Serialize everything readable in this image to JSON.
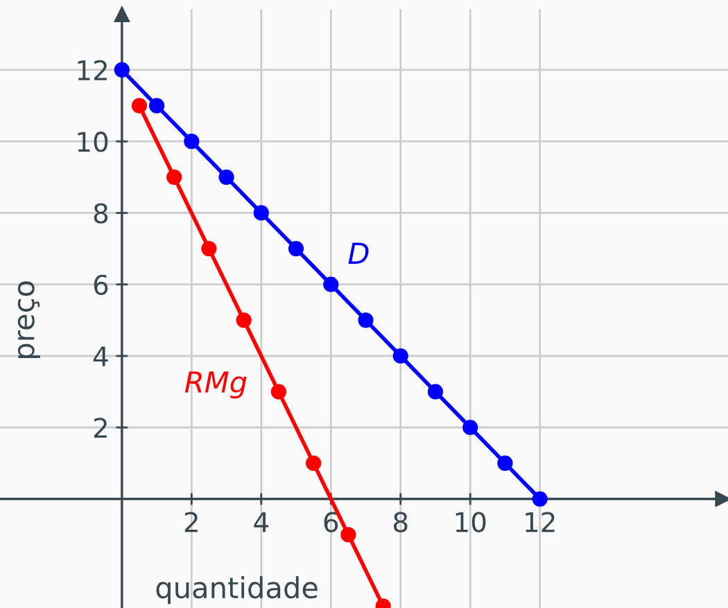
{
  "chart_data": {
    "type": "line",
    "xlabel": "quantidade",
    "ylabel": "preço",
    "xlim": [
      -3.5,
      17.4
    ],
    "ylim": [
      -3.05,
      13.7
    ],
    "xticks": [
      2,
      4,
      6,
      8,
      10,
      12
    ],
    "yticks": [
      2,
      4,
      6,
      8,
      10,
      12
    ],
    "grid": true,
    "marker": "circle",
    "line_style": "solid",
    "legend": false,
    "series": [
      {
        "name": "D",
        "color": "#0000ff",
        "x": [
          0,
          1,
          2,
          3,
          4,
          5,
          6,
          7,
          8,
          9,
          10,
          11,
          12
        ],
        "values": [
          12,
          11,
          10,
          9,
          8,
          7,
          6,
          5,
          4,
          3,
          2,
          1,
          0
        ]
      },
      {
        "name": "RMg",
        "color": "#ff0000",
        "x": [
          0.5,
          1.5,
          2.5,
          3.5,
          4.5,
          5.5,
          6.5,
          7.5
        ],
        "values": [
          11,
          9,
          7,
          5,
          3,
          1,
          -1,
          -3
        ]
      }
    ]
  }
}
